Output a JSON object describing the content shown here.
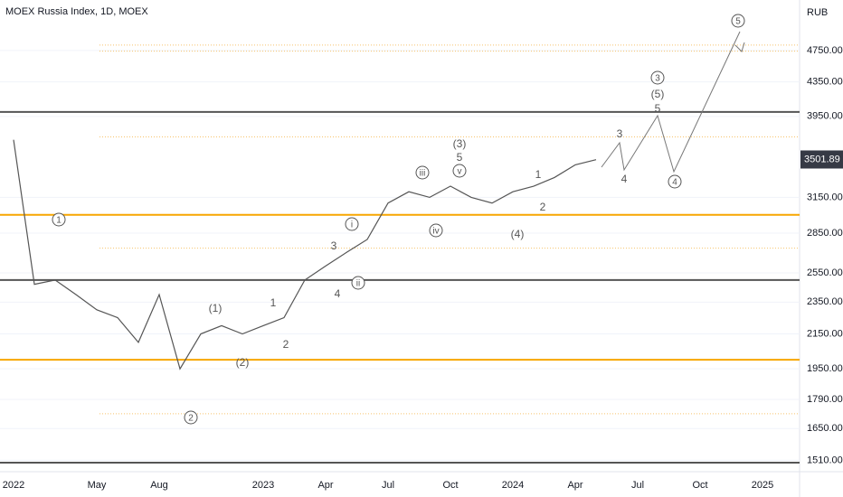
{
  "chart_data": {
    "type": "line",
    "title": "MOEX Russia Index, 1D, MOEX",
    "currency": "RUB",
    "categories": [
      "2022",
      null,
      null,
      null,
      "May",
      null,
      null,
      "Aug",
      null,
      null,
      null,
      null,
      "2023",
      null,
      null,
      "Apr",
      null,
      null,
      "Jul",
      null,
      null,
      "Oct",
      null,
      null,
      "2024",
      null,
      null,
      "Apr",
      null,
      null,
      "Jul",
      null,
      null,
      "Oct",
      null,
      null,
      "2025"
    ],
    "series": [
      {
        "color": "#555555",
        "values": [
          3700,
          2470,
          2500,
          2400,
          2300,
          2250,
          2100,
          2400,
          1950,
          2150,
          2200,
          2150,
          2200,
          2250,
          2500,
          2600,
          2700,
          2800,
          3100,
          3200,
          3150,
          3250,
          3150,
          3100,
          3200,
          3250,
          3330,
          3450,
          3500,
          null,
          null,
          null,
          null,
          null,
          null,
          null,
          null
        ]
      }
    ],
    "log_scale": true,
    "grid": true,
    "ylim": [
      1470,
      5470
    ],
    "yticks": [
      {
        "value": 4750,
        "label": "4750.00"
      },
      {
        "value": 4350,
        "label": "4350.00"
      },
      {
        "value": 3950,
        "label": "3950.00"
      },
      {
        "value": 3150,
        "label": "3150.00"
      },
      {
        "value": 2850,
        "label": "2850.00"
      },
      {
        "value": 2550,
        "label": "2550.00"
      },
      {
        "value": 2350,
        "label": "2350.00"
      },
      {
        "value": 2150,
        "label": "2150.00"
      },
      {
        "value": 1950,
        "label": "1950.00"
      },
      {
        "value": 1790,
        "label": "1790.00"
      },
      {
        "value": 1650,
        "label": "1650.00"
      },
      {
        "value": 1510,
        "label": "1510.00"
      }
    ],
    "current_price": 3501.89,
    "levels": [
      {
        "value": 4000,
        "color": "#555555"
      },
      {
        "value": 3000,
        "color": "#f7a600"
      },
      {
        "value": 2500,
        "color": "#555555"
      },
      {
        "value": 2000,
        "color": "#f7a600"
      },
      {
        "value": 1500,
        "color": "#555555"
      }
    ],
    "dotted_levels": [
      4822,
      4740,
      3730,
      2733,
      1720
    ],
    "wave_labels": [
      "1",
      "2",
      "(1)",
      "(2)",
      "1",
      "2",
      "3",
      "4",
      "i",
      "ii",
      "iii",
      "iv",
      "(3)",
      "5",
      "v",
      "(4)",
      "1",
      "2",
      "3",
      "4",
      "3",
      "(5)",
      "5",
      "4",
      "5"
    ]
  }
}
